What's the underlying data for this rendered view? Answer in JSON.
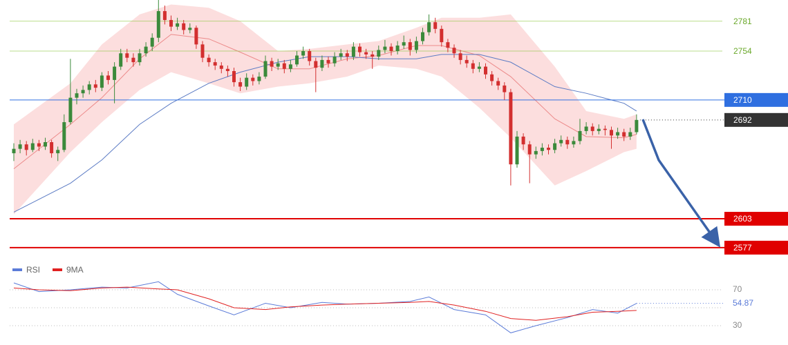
{
  "chart_data": {
    "type": "candlestick",
    "ylim": [
      2567,
      2800
    ],
    "up_color": "#3b8a3b",
    "down_color": "#d32f2f",
    "ohlc": [
      [
        2662,
        2671,
        2655,
        2666
      ],
      [
        2666,
        2674,
        2662,
        2670
      ],
      [
        2670,
        2673,
        2660,
        2665
      ],
      [
        2665,
        2675,
        2663,
        2671
      ],
      [
        2671,
        2674,
        2664,
        2668
      ],
      [
        2668,
        2676,
        2665,
        2672
      ],
      [
        2672,
        2674,
        2658,
        2662
      ],
      [
        2662,
        2668,
        2655,
        2665
      ],
      [
        2665,
        2697,
        2663,
        2690
      ],
      [
        2690,
        2747,
        2688,
        2712
      ],
      [
        2712,
        2720,
        2706,
        2716
      ],
      [
        2716,
        2723,
        2712,
        2719
      ],
      [
        2719,
        2727,
        2715,
        2724
      ],
      [
        2724,
        2728,
        2717,
        2721
      ],
      [
        2721,
        2735,
        2718,
        2732
      ],
      [
        2732,
        2736,
        2724,
        2728
      ],
      [
        2728,
        2744,
        2707,
        2740
      ],
      [
        2740,
        2756,
        2737,
        2752
      ],
      [
        2752,
        2756,
        2744,
        2748
      ],
      [
        2748,
        2752,
        2740,
        2744
      ],
      [
        2744,
        2756,
        2741,
        2752
      ],
      [
        2752,
        2762,
        2749,
        2758
      ],
      [
        2758,
        2770,
        2754,
        2766
      ],
      [
        2766,
        2800,
        2762,
        2790
      ],
      [
        2790,
        2795,
        2778,
        2782
      ],
      [
        2782,
        2786,
        2772,
        2776
      ],
      [
        2776,
        2784,
        2773,
        2779
      ],
      [
        2779,
        2782,
        2769,
        2773
      ],
      [
        2773,
        2779,
        2770,
        2775
      ],
      [
        2775,
        2777,
        2756,
        2760
      ],
      [
        2760,
        2763,
        2744,
        2748
      ],
      [
        2748,
        2751,
        2740,
        2744
      ],
      [
        2744,
        2747,
        2737,
        2741
      ],
      [
        2741,
        2744,
        2734,
        2738
      ],
      [
        2738,
        2741,
        2731,
        2736
      ],
      [
        2736,
        2739,
        2722,
        2726
      ],
      [
        2726,
        2730,
        2718,
        2722
      ],
      [
        2722,
        2734,
        2719,
        2730
      ],
      [
        2730,
        2733,
        2723,
        2727
      ],
      [
        2727,
        2735,
        2724,
        2731
      ],
      [
        2731,
        2750,
        2729,
        2745
      ],
      [
        2745,
        2748,
        2736,
        2740
      ],
      [
        2740,
        2747,
        2737,
        2743
      ],
      [
        2743,
        2746,
        2734,
        2738
      ],
      [
        2738,
        2746,
        2735,
        2742
      ],
      [
        2742,
        2754,
        2740,
        2750
      ],
      [
        2750,
        2758,
        2747,
        2754
      ],
      [
        2754,
        2756,
        2741,
        2745
      ],
      [
        2745,
        2748,
        2717,
        2739
      ],
      [
        2739,
        2750,
        2736,
        2746
      ],
      [
        2746,
        2749,
        2739,
        2743
      ],
      [
        2743,
        2753,
        2740,
        2749
      ],
      [
        2749,
        2756,
        2746,
        2752
      ],
      [
        2752,
        2755,
        2745,
        2749
      ],
      [
        2749,
        2762,
        2746,
        2758
      ],
      [
        2758,
        2761,
        2749,
        2753
      ],
      [
        2753,
        2756,
        2747,
        2751
      ],
      [
        2751,
        2754,
        2738,
        2749
      ],
      [
        2749,
        2759,
        2746,
        2755
      ],
      [
        2755,
        2764,
        2752,
        2758
      ],
      [
        2758,
        2761,
        2750,
        2754
      ],
      [
        2754,
        2763,
        2751,
        2759
      ],
      [
        2759,
        2768,
        2756,
        2762
      ],
      [
        2762,
        2765,
        2750,
        2755
      ],
      [
        2755,
        2767,
        2752,
        2763
      ],
      [
        2763,
        2775,
        2760,
        2771
      ],
      [
        2771,
        2787,
        2768,
        2780
      ],
      [
        2780,
        2784,
        2770,
        2774
      ],
      [
        2774,
        2777,
        2758,
        2762
      ],
      [
        2762,
        2765,
        2753,
        2757
      ],
      [
        2757,
        2760,
        2748,
        2752
      ],
      [
        2752,
        2755,
        2742,
        2746
      ],
      [
        2746,
        2750,
        2739,
        2743
      ],
      [
        2743,
        2746,
        2734,
        2738
      ],
      [
        2738,
        2744,
        2735,
        2740
      ],
      [
        2740,
        2743,
        2729,
        2733
      ],
      [
        2733,
        2736,
        2723,
        2727
      ],
      [
        2727,
        2730,
        2719,
        2723
      ],
      [
        2723,
        2726,
        2710,
        2717
      ],
      [
        2717,
        2720,
        2633,
        2652
      ],
      [
        2652,
        2682,
        2649,
        2677
      ],
      [
        2677,
        2680,
        2665,
        2670
      ],
      [
        2670,
        2673,
        2635,
        2661
      ],
      [
        2661,
        2668,
        2657,
        2664
      ],
      [
        2664,
        2671,
        2660,
        2667
      ],
      [
        2667,
        2670,
        2661,
        2665
      ],
      [
        2665,
        2675,
        2662,
        2671
      ],
      [
        2671,
        2678,
        2668,
        2674
      ],
      [
        2674,
        2677,
        2666,
        2670
      ],
      [
        2670,
        2677,
        2667,
        2673
      ],
      [
        2673,
        2693,
        2670,
        2682
      ],
      [
        2682,
        2690,
        2679,
        2686
      ],
      [
        2686,
        2689,
        2678,
        2682
      ],
      [
        2682,
        2688,
        2679,
        2684
      ],
      [
        2684,
        2687,
        2678,
        2683
      ],
      [
        2683,
        2686,
        2666,
        2678
      ],
      [
        2678,
        2685,
        2675,
        2681
      ],
      [
        2681,
        2684,
        2673,
        2677
      ],
      [
        2677,
        2685,
        2674,
        2681
      ],
      [
        2681,
        2697,
        2679,
        2692
      ]
    ],
    "bands": {
      "x": [
        0,
        9,
        14,
        20,
        25,
        31,
        36,
        42,
        47,
        53,
        58,
        64,
        68,
        74,
        79,
        86,
        91,
        97,
        99
      ],
      "fill": "#fbd3d3",
      "upper": [
        2688,
        2725,
        2760,
        2787,
        2796,
        2793,
        2781,
        2754,
        2756,
        2760,
        2763,
        2775,
        2784,
        2784,
        2787,
        2740,
        2700,
        2693,
        2697
      ],
      "lower": [
        2607,
        2663,
        2690,
        2719,
        2735,
        2725,
        2716,
        2722,
        2725,
        2731,
        2741,
        2738,
        2731,
        2703,
        2676,
        2633,
        2646,
        2663,
        2666
      ],
      "middle": [
        2648,
        2688,
        2712,
        2747,
        2769,
        2765,
        2753,
        2738,
        2738,
        2747,
        2750,
        2759,
        2759,
        2750,
        2731,
        2693,
        2677,
        2676,
        2679
      ],
      "middle_color": "#ec8a8a",
      "ma": [
        2609,
        2635,
        2656,
        2688,
        2707,
        2725,
        2735,
        2744,
        2749,
        2749,
        2747,
        2747,
        2751,
        2751,
        2744,
        2722,
        2716,
        2707,
        2700
      ],
      "ma_color": "#5b7bc4"
    },
    "levels": [
      {
        "value": 2781,
        "color": "#8cc63f",
        "box": false,
        "line": "solid"
      },
      {
        "value": 2754,
        "color": "#8cc63f",
        "box": false,
        "line": "solid"
      },
      {
        "value": 2710,
        "color": "#2f6fe0",
        "box": true,
        "line": "solid"
      },
      {
        "value": 2692,
        "color": "#333333",
        "box": true,
        "line": "dotted"
      },
      {
        "value": 2603,
        "color": "#e00000",
        "box": true,
        "line": "solid"
      },
      {
        "value": 2577,
        "color": "#e00000",
        "box": true,
        "line": "solid"
      }
    ],
    "rsi": {
      "ylim": [
        10,
        100
      ],
      "yticks": [
        70,
        30
      ],
      "midline": 50,
      "x": [
        0,
        4,
        9,
        14,
        18,
        23,
        26,
        31,
        35,
        40,
        44,
        49,
        53,
        58,
        63,
        66,
        70,
        75,
        79,
        83,
        88,
        92,
        96,
        99
      ],
      "series": [
        {
          "name": "RSI",
          "color": "#5b7bd8",
          "values": [
            77.7,
            68,
            70,
            73,
            72,
            79,
            65,
            52,
            42,
            55,
            50,
            56,
            54,
            55,
            57,
            62,
            48,
            42,
            22,
            30,
            39,
            48,
            44,
            54.87
          ]
        },
        {
          "name": "9MA",
          "color": "#e02020",
          "values": [
            72,
            70,
            69,
            72,
            73,
            71,
            70,
            60,
            50,
            48,
            51,
            53,
            54,
            55,
            56,
            57,
            53,
            46,
            38,
            36,
            40,
            45,
            46,
            47
          ]
        }
      ]
    }
  }
}
